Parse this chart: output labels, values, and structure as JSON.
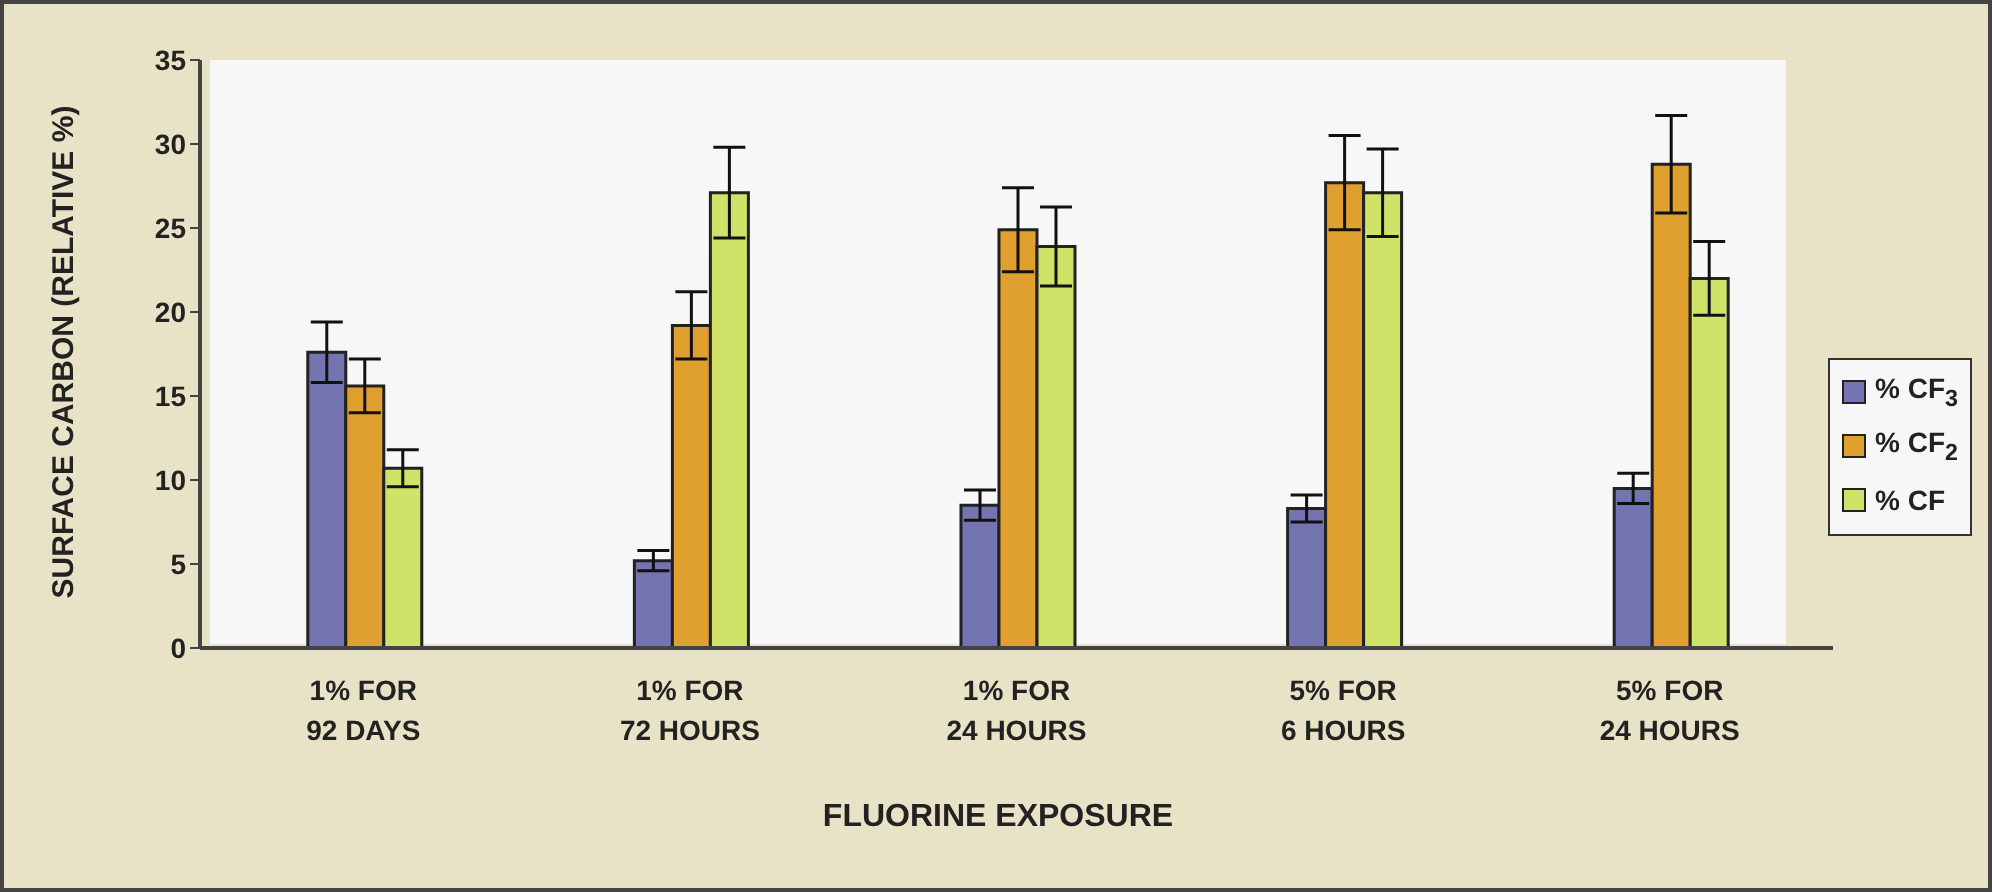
{
  "chart_data": {
    "type": "bar",
    "xlabel": "FLUORINE EXPOSURE",
    "ylabel": "SURFACE CARBON (RELATIVE %)",
    "categories": [
      "1% FOR\n92 DAYS",
      "1% FOR\n72 HOURS",
      "1% FOR\n24 HOURS",
      "5% FOR\n6 HOURS",
      "5% FOR\n24 HOURS"
    ],
    "series": [
      {
        "name": "% CF$_{3}$",
        "color": "#7474b0",
        "values": [
          17.6,
          5.2,
          8.5,
          8.3,
          9.5
        ],
        "errors": [
          1.8,
          0.6,
          0.9,
          0.8,
          0.9
        ]
      },
      {
        "name": "% CF$_{2}$",
        "color": "#e0a030",
        "values": [
          15.6,
          19.2,
          24.9,
          27.7,
          28.8
        ],
        "errors": [
          1.6,
          2.0,
          2.5,
          2.8,
          2.9
        ]
      },
      {
        "name": "% CF",
        "color": "#d0e268",
        "values": [
          10.7,
          27.1,
          23.9,
          27.1,
          22.0
        ],
        "errors": [
          1.1,
          2.7,
          2.35,
          2.6,
          2.2
        ]
      }
    ],
    "ylim": [
      0,
      35
    ],
    "yticks": [
      0,
      5,
      10,
      15,
      20,
      25,
      30,
      35
    ],
    "grid": false,
    "legend": "right"
  }
}
